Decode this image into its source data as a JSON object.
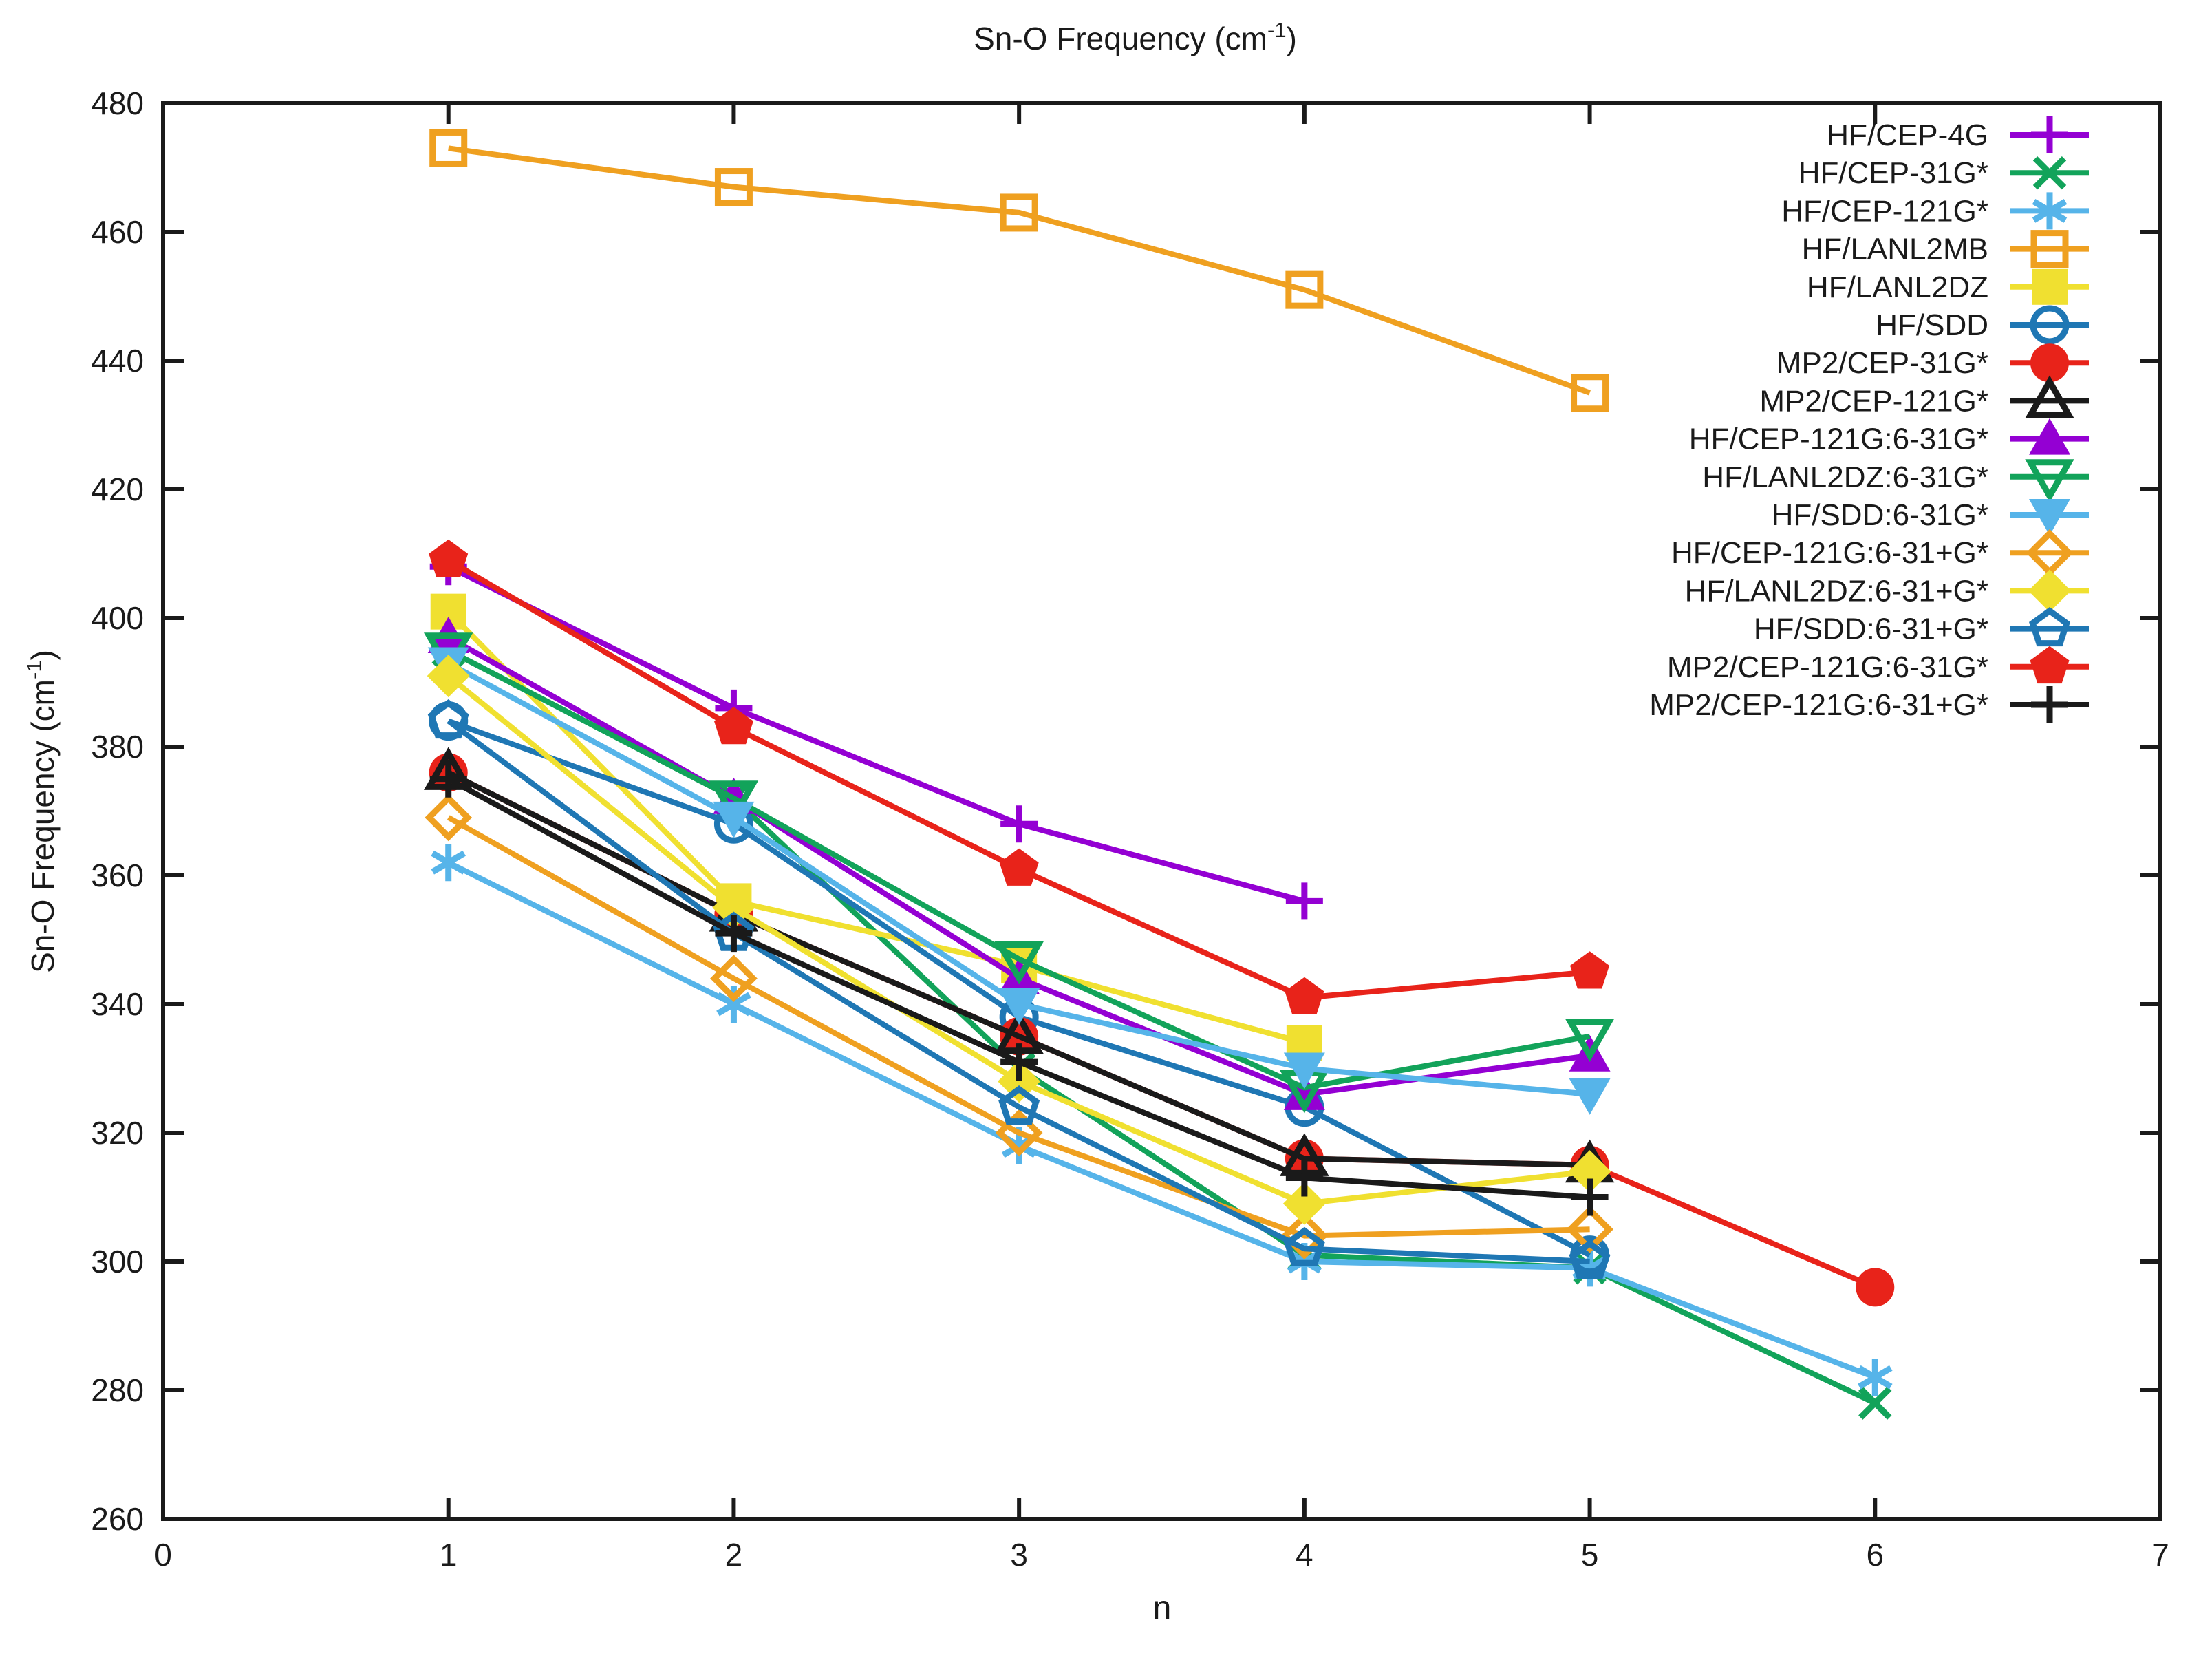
{
  "chart_data": {
    "type": "line",
    "title": {
      "base": "Sn-O Frequency (cm",
      "sup": "-1",
      "close": ")"
    },
    "xlabel": "n",
    "ylabel": {
      "base": "Sn-O Frequency (cm",
      "sup": "-1",
      "close": ")"
    },
    "xlim": [
      0,
      7
    ],
    "ylim": [
      260,
      480
    ],
    "xticks": [
      0,
      1,
      2,
      3,
      4,
      5,
      6,
      7
    ],
    "yticks": [
      260,
      280,
      300,
      320,
      340,
      360,
      380,
      400,
      420,
      440,
      460,
      480
    ],
    "grid": false,
    "legend_position": "top-right-inside",
    "frame_color": "#1a1a1a",
    "series": [
      {
        "name": "HF/CEP-4G",
        "color": "#9400d3",
        "marker": "plus",
        "points": [
          [
            1,
            408
          ],
          [
            2,
            386
          ],
          [
            3,
            368
          ],
          [
            4,
            356
          ]
        ]
      },
      {
        "name": "HF/CEP-31G*",
        "color": "#12a35a",
        "marker": "cross",
        "points": [
          [
            1,
            395
          ],
          [
            2,
            372
          ],
          [
            3,
            330
          ],
          [
            4,
            301
          ],
          [
            5,
            299
          ],
          [
            6,
            278
          ]
        ]
      },
      {
        "name": "HF/CEP-121G*",
        "color": "#56b4e9",
        "marker": "asterisk",
        "points": [
          [
            1,
            362
          ],
          [
            2,
            340
          ],
          [
            3,
            318
          ],
          [
            4,
            300
          ],
          [
            5,
            299
          ],
          [
            6,
            282
          ]
        ]
      },
      {
        "name": "HF/LANL2MB",
        "color": "#efa020",
        "marker": "square-open",
        "points": [
          [
            1,
            473
          ],
          [
            2,
            467
          ],
          [
            3,
            463
          ],
          [
            4,
            451
          ],
          [
            5,
            435
          ]
        ]
      },
      {
        "name": "HF/LANL2DZ",
        "color": "#f0e030",
        "marker": "square-filled",
        "points": [
          [
            1,
            401
          ],
          [
            2,
            356
          ],
          [
            3,
            346
          ],
          [
            4,
            334
          ]
        ]
      },
      {
        "name": "HF/SDD",
        "color": "#1f77b4",
        "marker": "circle-open",
        "points": [
          [
            1,
            384
          ],
          [
            2,
            368
          ],
          [
            3,
            338
          ],
          [
            4,
            324
          ],
          [
            5,
            301
          ]
        ]
      },
      {
        "name": "MP2/CEP-31G*",
        "color": "#e8231a",
        "marker": "circle-filled",
        "points": [
          [
            1,
            376
          ],
          [
            2,
            354
          ],
          [
            3,
            335
          ],
          [
            4,
            316
          ],
          [
            5,
            315
          ],
          [
            6,
            296
          ]
        ]
      },
      {
        "name": "MP2/CEP-121G*",
        "color": "#1a1a1a",
        "marker": "triangle-up-open",
        "points": [
          [
            1,
            376
          ],
          [
            2,
            354
          ],
          [
            3,
            335
          ],
          [
            4,
            316
          ],
          [
            5,
            315
          ]
        ]
      },
      {
        "name": "HF/CEP-121G:6-31G*",
        "color": "#9400d3",
        "marker": "triangle-up-filled",
        "points": [
          [
            1,
            397
          ],
          [
            2,
            372
          ],
          [
            3,
            344
          ],
          [
            4,
            326
          ],
          [
            5,
            332
          ]
        ]
      },
      {
        "name": "HF/LANL2DZ:6-31G*",
        "color": "#12a35a",
        "marker": "triangle-down-open",
        "points": [
          [
            1,
            395
          ],
          [
            2,
            372
          ],
          [
            3,
            347
          ],
          [
            4,
            327
          ],
          [
            5,
            335
          ]
        ]
      },
      {
        "name": "HF/SDD:6-31G*",
        "color": "#56b4e9",
        "marker": "triangle-down-filled",
        "points": [
          [
            1,
            393
          ],
          [
            2,
            369
          ],
          [
            3,
            340
          ],
          [
            4,
            330
          ],
          [
            5,
            326
          ]
        ]
      },
      {
        "name": "HF/CEP-121G:6-31+G*",
        "color": "#efa020",
        "marker": "diamond-open",
        "points": [
          [
            1,
            369
          ],
          [
            2,
            344
          ],
          [
            3,
            320
          ],
          [
            4,
            304
          ],
          [
            5,
            305
          ]
        ]
      },
      {
        "name": "HF/LANL2DZ:6-31+G*",
        "color": "#f0e030",
        "marker": "diamond-filled",
        "points": [
          [
            1,
            391
          ],
          [
            2,
            355
          ],
          [
            3,
            328
          ],
          [
            4,
            309
          ],
          [
            5,
            314
          ]
        ]
      },
      {
        "name": "HF/SDD:6-31+G*",
        "color": "#1f77b4",
        "marker": "pentagon-open",
        "points": [
          [
            1,
            384
          ],
          [
            2,
            351
          ],
          [
            3,
            324
          ],
          [
            4,
            302
          ],
          [
            5,
            300
          ]
        ]
      },
      {
        "name": "MP2/CEP-121G:6-31G*",
        "color": "#e8231a",
        "marker": "pentagon-filled",
        "points": [
          [
            1,
            409
          ],
          [
            2,
            383
          ],
          [
            3,
            361
          ],
          [
            4,
            341
          ],
          [
            5,
            345
          ]
        ]
      },
      {
        "name": "MP2/CEP-121G:6-31+G*",
        "color": "#1a1a1a",
        "marker": "plus",
        "points": [
          [
            1,
            375
          ],
          [
            2,
            351
          ],
          [
            3,
            331
          ],
          [
            4,
            313
          ],
          [
            5,
            310
          ]
        ]
      }
    ]
  }
}
